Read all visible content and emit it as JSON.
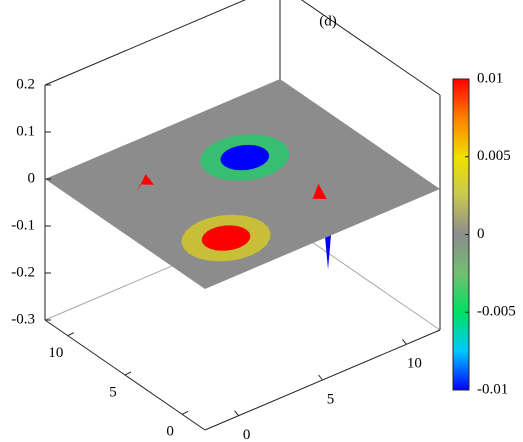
{
  "chart_data": {
    "type": "surface3d",
    "title": "(d)",
    "xlim": [
      -2,
      12
    ],
    "ylim": [
      -2,
      12
    ],
    "zlim": [
      -0.3,
      0.2
    ],
    "xticks": [
      0,
      5,
      10
    ],
    "yticks": [
      0,
      5,
      10
    ],
    "zticks": [
      0.2,
      0.1,
      0,
      -0.1,
      -0.2,
      -0.3
    ],
    "surface_color": "#8c8c8c",
    "features": [
      {
        "x": 6.5,
        "y": 7.0,
        "z": -0.01
      },
      {
        "x": 1.5,
        "y": 1.3,
        "z": 0.01
      },
      {
        "x": 1.2,
        "y": 7.9,
        "z": 0.03
      },
      {
        "x": 6.8,
        "y": 1.0,
        "z": 0.04
      },
      {
        "x": 1.5,
        "y": 7.3,
        "z": -0.14
      },
      {
        "x": 7.1,
        "y": 0.6,
        "z": -0.14
      }
    ],
    "colorbar": {
      "lim": [
        -0.01,
        0.01
      ],
      "ticks": [
        0.01,
        0.005,
        0,
        -0.005,
        -0.01
      ],
      "colormap": [
        "#0000ff",
        "#00c8ff",
        "#00e060",
        "#70c070",
        "#8c8c8c",
        "#c8c850",
        "#f0e000",
        "#ff8000",
        "#ff0000"
      ]
    }
  }
}
